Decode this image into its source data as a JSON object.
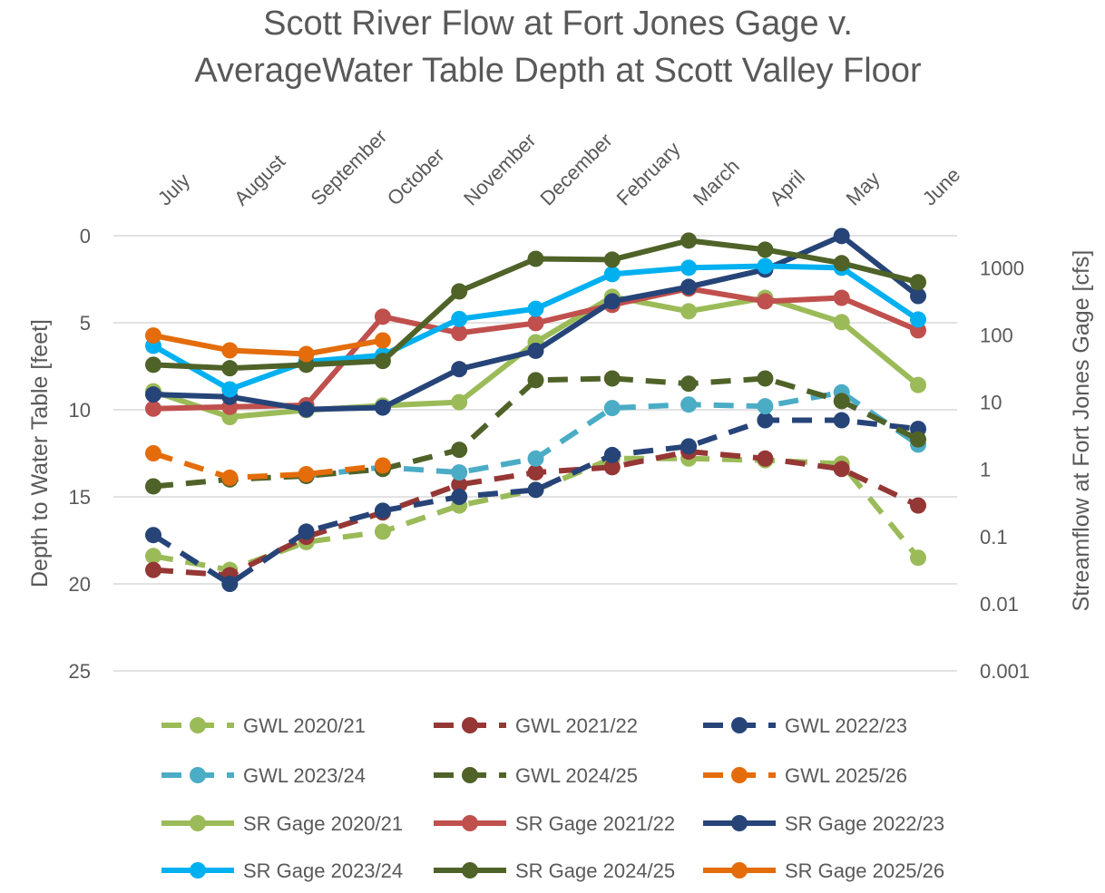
{
  "chart_data": {
    "type": "line",
    "title": [
      "Scott River Flow at Fort Jones Gage v.",
      "AverageWater Table Depth at Scott Valley Floor"
    ],
    "categories": [
      "July",
      "August",
      "September",
      "October",
      "November",
      "December",
      "February",
      "March",
      "April",
      "May",
      "June"
    ],
    "y_left": {
      "label": "Depth to Water Table [feet]",
      "range": [
        0,
        25
      ],
      "reversed": true,
      "ticks": [
        "0",
        "5",
        "10",
        "15",
        "20",
        "25"
      ]
    },
    "y_right": {
      "label": "Streamflow at Fort Jones Gage [cfs]",
      "scale": "log",
      "range": [
        0.001,
        3000
      ],
      "ticks": [
        "1000",
        "100",
        "10",
        "1",
        "0.1",
        "0.01",
        "0.001"
      ]
    },
    "grid": true,
    "legend": "bottom",
    "series": [
      {
        "name": "GWL 2020/21",
        "axis": "left",
        "dash": true,
        "color": "#9BBB59",
        "values": [
          18.4,
          19.2,
          17.6,
          17.0,
          15.5,
          14.6,
          12.8,
          12.8,
          12.9,
          13.1,
          18.5
        ]
      },
      {
        "name": "GWL 2021/22",
        "axis": "left",
        "dash": true,
        "color": "#953735",
        "values": [
          19.2,
          19.5,
          17.3,
          15.9,
          14.3,
          13.6,
          13.3,
          12.4,
          12.8,
          13.4,
          15.5
        ]
      },
      {
        "name": "GWL 2022/23",
        "axis": "left",
        "dash": true,
        "color": "#264478",
        "values": [
          17.2,
          20.0,
          17.0,
          15.8,
          15.0,
          14.6,
          12.6,
          12.1,
          10.6,
          10.6,
          11.1
        ]
      },
      {
        "name": "GWL 2023/24",
        "axis": "left",
        "dash": true,
        "color": "#4BACC6",
        "values": [
          null,
          null,
          13.8,
          13.3,
          13.6,
          12.8,
          9.9,
          9.7,
          9.8,
          9.0,
          12.0
        ]
      },
      {
        "name": "GWL 2024/25",
        "axis": "left",
        "dash": true,
        "color": "#4F6228",
        "values": [
          14.4,
          14.0,
          13.8,
          13.4,
          12.3,
          8.3,
          8.2,
          8.5,
          8.2,
          9.5,
          11.7
        ]
      },
      {
        "name": "GWL 2025/26",
        "axis": "left",
        "dash": true,
        "color": "#E46C0A",
        "values": [
          12.5,
          13.9,
          13.7,
          13.2,
          null,
          null,
          null,
          null,
          null,
          null,
          null
        ]
      },
      {
        "name": "SR Gage 2020/21",
        "axis": "right",
        "dash": false,
        "color": "#9BBB59",
        "values": [
          14.5,
          6,
          7.6,
          8.9,
          10,
          78,
          370,
          225,
          357,
          155,
          18
        ]
      },
      {
        "name": "SR Gage 2021/22",
        "axis": "right",
        "dash": false,
        "color": "#C0504D",
        "values": [
          8,
          8.5,
          9,
          187,
          107,
          150,
          280,
          490,
          316,
          357,
          117
        ]
      },
      {
        "name": "SR Gage 2022/23",
        "axis": "right",
        "dash": false,
        "color": "#264478",
        "values": [
          13,
          12,
          7.8,
          8.3,
          31,
          58,
          316,
          520,
          940,
          2970,
          380
        ]
      },
      {
        "name": "SR Gage 2023/24",
        "axis": "right",
        "dash": false,
        "color": "#00B0F0",
        "values": [
          69,
          15.5,
          40,
          50,
          173,
          245,
          805,
          1000,
          1060,
          1000,
          170
        ]
      },
      {
        "name": "SR Gage 2024/25",
        "axis": "right",
        "dash": false,
        "color": "#4F6228",
        "values": [
          36,
          32,
          36,
          41,
          445,
          1360,
          1320,
          2540,
          1860,
          1170,
          610
        ]
      },
      {
        "name": "SR Gage 2025/26",
        "axis": "right",
        "dash": false,
        "color": "#E46C0A",
        "values": [
          98,
          59,
          52,
          83,
          null,
          null,
          null,
          null,
          null,
          null,
          null
        ]
      }
    ]
  }
}
